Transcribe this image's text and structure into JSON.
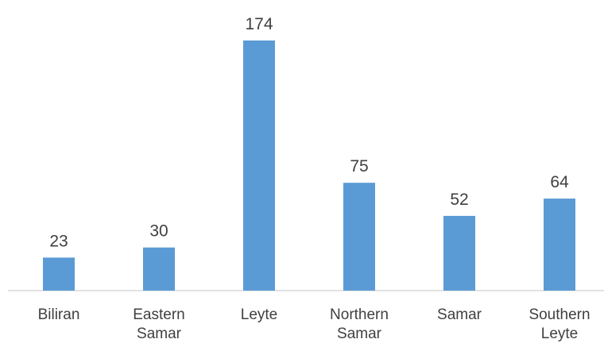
{
  "chart_data": {
    "type": "bar",
    "categories": [
      [
        "Biliran"
      ],
      [
        "Eastern",
        "Samar"
      ],
      [
        "Leyte"
      ],
      [
        "Northern",
        "Samar"
      ],
      [
        "Samar"
      ],
      [
        "Southern",
        "Leyte"
      ]
    ],
    "values": [
      23,
      30,
      174,
      75,
      52,
      64
    ],
    "title": "",
    "xlabel": "",
    "ylabel": "",
    "ylim": [
      0,
      174
    ],
    "grid": false,
    "legend": "none",
    "bar_color": "#5b9bd5",
    "axis_color": "#d9d9d9",
    "label_color": "#404040"
  }
}
